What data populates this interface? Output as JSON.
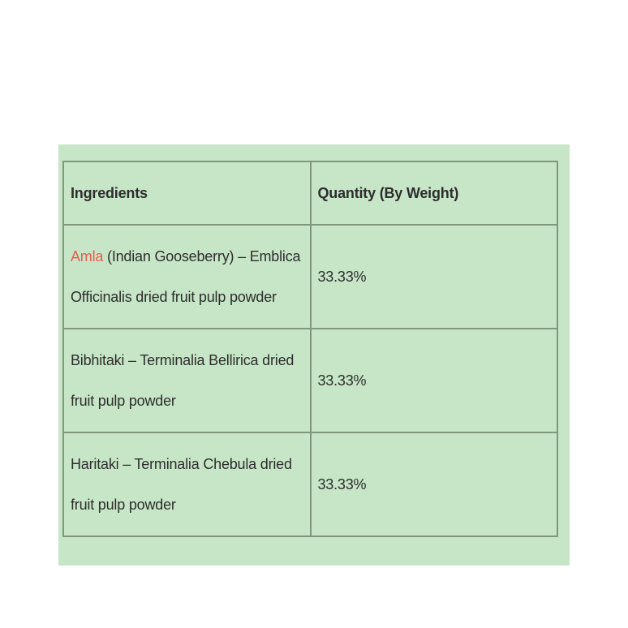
{
  "colors": {
    "panel_background": "#c7e6c7",
    "table_border": "#7f977f",
    "text": "#2d2d2d",
    "highlight_text": "#e95c50",
    "page_background": "#ffffff"
  },
  "table": {
    "headers": [
      "Ingredients",
      "Quantity (By Weight)"
    ],
    "rows": [
      {
        "ingredient_highlight": "Amla",
        "ingredient_rest": " (Indian Gooseberry) – Emblica Officinalis dried fruit pulp powder",
        "quantity": "33.33%"
      },
      {
        "ingredient_highlight": "",
        "ingredient_rest": "Bibhitaki – Terminalia Bellirica dried fruit pulp powder",
        "quantity": "33.33%"
      },
      {
        "ingredient_highlight": "",
        "ingredient_rest": "Haritaki – Terminalia Chebula dried fruit pulp powder",
        "quantity": "33.33%"
      }
    ]
  }
}
